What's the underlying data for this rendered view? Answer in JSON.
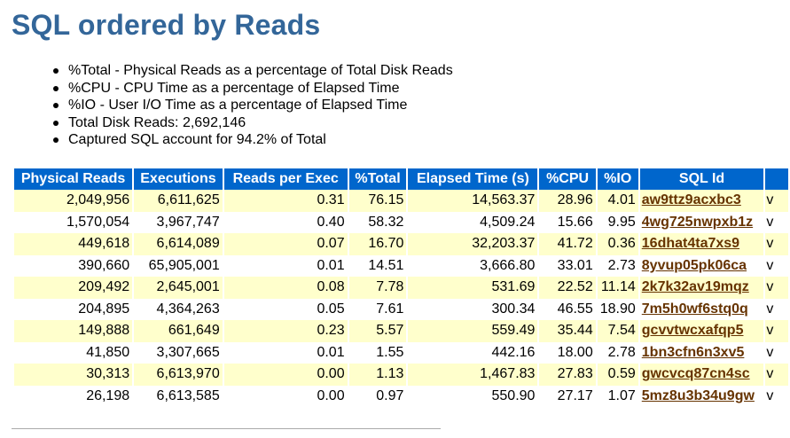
{
  "page": {
    "title": "SQL ordered by Reads"
  },
  "notes": [
    "%Total - Physical Reads as a percentage of Total Disk Reads",
    "%CPU - CPU Time as a percentage of Elapsed Time",
    "%IO - User I/O Time as a percentage of Elapsed Time",
    "Total Disk Reads: 2,692,146",
    "Captured SQL account for 94.2% of Total"
  ],
  "table": {
    "headers": [
      "Physical Reads",
      "Executions",
      "Reads per Exec",
      "%Total",
      "Elapsed Time (s)",
      "%CPU",
      "%IO",
      "SQL Id",
      ""
    ],
    "rows": [
      {
        "physical_reads": "2,049,956",
        "executions": "6,611,625",
        "reads_per_exec": "0.31",
        "total_pct": "76.15",
        "elapsed": "14,563.37",
        "cpu": "28.96",
        "io": "4.01",
        "sql_id": "aw9ttz9acxbc3",
        "extra": "v"
      },
      {
        "physical_reads": "1,570,054",
        "executions": "3,967,747",
        "reads_per_exec": "0.40",
        "total_pct": "58.32",
        "elapsed": "4,509.24",
        "cpu": "15.66",
        "io": "9.95",
        "sql_id": "4wg725nwpxb1z",
        "extra": "v"
      },
      {
        "physical_reads": "449,618",
        "executions": "6,614,089",
        "reads_per_exec": "0.07",
        "total_pct": "16.70",
        "elapsed": "32,203.37",
        "cpu": "41.72",
        "io": "0.36",
        "sql_id": "16dhat4ta7xs9",
        "extra": "v"
      },
      {
        "physical_reads": "390,660",
        "executions": "65,905,001",
        "reads_per_exec": "0.01",
        "total_pct": "14.51",
        "elapsed": "3,666.80",
        "cpu": "33.01",
        "io": "2.73",
        "sql_id": "8yvup05pk06ca",
        "extra": "v"
      },
      {
        "physical_reads": "209,492",
        "executions": "2,645,001",
        "reads_per_exec": "0.08",
        "total_pct": "7.78",
        "elapsed": "531.69",
        "cpu": "22.52",
        "io": "11.14",
        "sql_id": "2k7k32av19mqz",
        "extra": "v"
      },
      {
        "physical_reads": "204,895",
        "executions": "4,364,263",
        "reads_per_exec": "0.05",
        "total_pct": "7.61",
        "elapsed": "300.34",
        "cpu": "46.55",
        "io": "18.90",
        "sql_id": "7m5h0wf6stq0q",
        "extra": "v"
      },
      {
        "physical_reads": "149,888",
        "executions": "661,649",
        "reads_per_exec": "0.23",
        "total_pct": "5.57",
        "elapsed": "559.49",
        "cpu": "35.44",
        "io": "7.54",
        "sql_id": "gcvvtwcxafqp5",
        "extra": "v"
      },
      {
        "physical_reads": "41,850",
        "executions": "3,307,665",
        "reads_per_exec": "0.01",
        "total_pct": "1.55",
        "elapsed": "442.16",
        "cpu": "18.00",
        "io": "2.78",
        "sql_id": "1bn3cfn6n3xv5",
        "extra": "v"
      },
      {
        "physical_reads": "30,313",
        "executions": "6,613,970",
        "reads_per_exec": "0.00",
        "total_pct": "1.13",
        "elapsed": "1,467.83",
        "cpu": "27.83",
        "io": "0.59",
        "sql_id": "gwcvcq87cn4sc",
        "extra": "v"
      },
      {
        "physical_reads": "26,198",
        "executions": "6,613,585",
        "reads_per_exec": "0.00",
        "total_pct": "0.97",
        "elapsed": "550.90",
        "cpu": "27.17",
        "io": "1.07",
        "sql_id": "5mz8u3b34u9gw",
        "extra": "v"
      }
    ]
  },
  "colors": {
    "title": "#336699",
    "header_bg": "#0066cc",
    "odd_row_bg": "#ffffcc",
    "link": "#663300"
  }
}
